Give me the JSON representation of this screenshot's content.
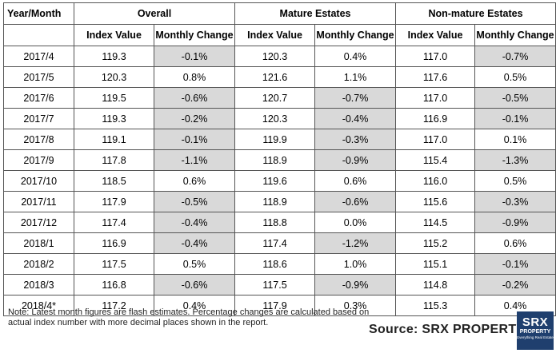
{
  "table": {
    "group_headers": [
      "Year/Month",
      "Overall",
      "Mature Estates",
      "Non-mature Estates"
    ],
    "sub_headers": [
      "Index Value",
      "Monthly Change",
      "Index Value",
      "Monthly Change",
      "Index Value",
      "Monthly Change"
    ],
    "rows": [
      {
        "month": "2017/4",
        "values": [
          "119.3",
          "-0.1%",
          "120.3",
          "0.4%",
          "117.0",
          "-0.7%"
        ]
      },
      {
        "month": "2017/5",
        "values": [
          "120.3",
          "0.8%",
          "121.6",
          "1.1%",
          "117.6",
          "0.5%"
        ]
      },
      {
        "month": "2017/6",
        "values": [
          "119.5",
          "-0.6%",
          "120.7",
          "-0.7%",
          "117.0",
          "-0.5%"
        ]
      },
      {
        "month": "2017/7",
        "values": [
          "119.3",
          "-0.2%",
          "120.3",
          "-0.4%",
          "116.9",
          "-0.1%"
        ]
      },
      {
        "month": "2017/8",
        "values": [
          "119.1",
          "-0.1%",
          "119.9",
          "-0.3%",
          "117.0",
          "0.1%"
        ]
      },
      {
        "month": "2017/9",
        "values": [
          "117.8",
          "-1.1%",
          "118.9",
          "-0.9%",
          "115.4",
          "-1.3%"
        ]
      },
      {
        "month": "2017/10",
        "values": [
          "118.5",
          "0.6%",
          "119.6",
          "0.6%",
          "116.0",
          "0.5%"
        ]
      },
      {
        "month": "2017/11",
        "values": [
          "117.9",
          "-0.5%",
          "118.9",
          "-0.6%",
          "115.6",
          "-0.3%"
        ]
      },
      {
        "month": "2017/12",
        "values": [
          "117.4",
          "-0.4%",
          "118.8",
          "0.0%",
          "114.5",
          "-0.9%"
        ]
      },
      {
        "month": "2018/1",
        "values": [
          "116.9",
          "-0.4%",
          "117.4",
          "-1.2%",
          "115.2",
          "0.6%"
        ]
      },
      {
        "month": "2018/2",
        "values": [
          "117.5",
          "0.5%",
          "118.6",
          "1.0%",
          "115.1",
          "-0.1%"
        ]
      },
      {
        "month": "2018/3",
        "values": [
          "116.8",
          "-0.6%",
          "117.5",
          "-0.9%",
          "114.8",
          "-0.2%"
        ]
      },
      {
        "month": "2018/4*",
        "values": [
          "117.2",
          "0.4%",
          "117.9",
          "0.3%",
          "115.3",
          "0.4%"
        ]
      }
    ],
    "negative_shade_color": "#d9d9d9"
  },
  "footer": {
    "note": "Note: Latest month figures are flash estimates. Percentage changes are calculated based on actual index number with more decimal places shown in the report.",
    "source": "Source:  SRX PROPERTY",
    "logo": {
      "line1": "SRX",
      "line2": "PROPERTY",
      "line3": "Everything Real Estate",
      "color": "#1f3f6e"
    }
  }
}
